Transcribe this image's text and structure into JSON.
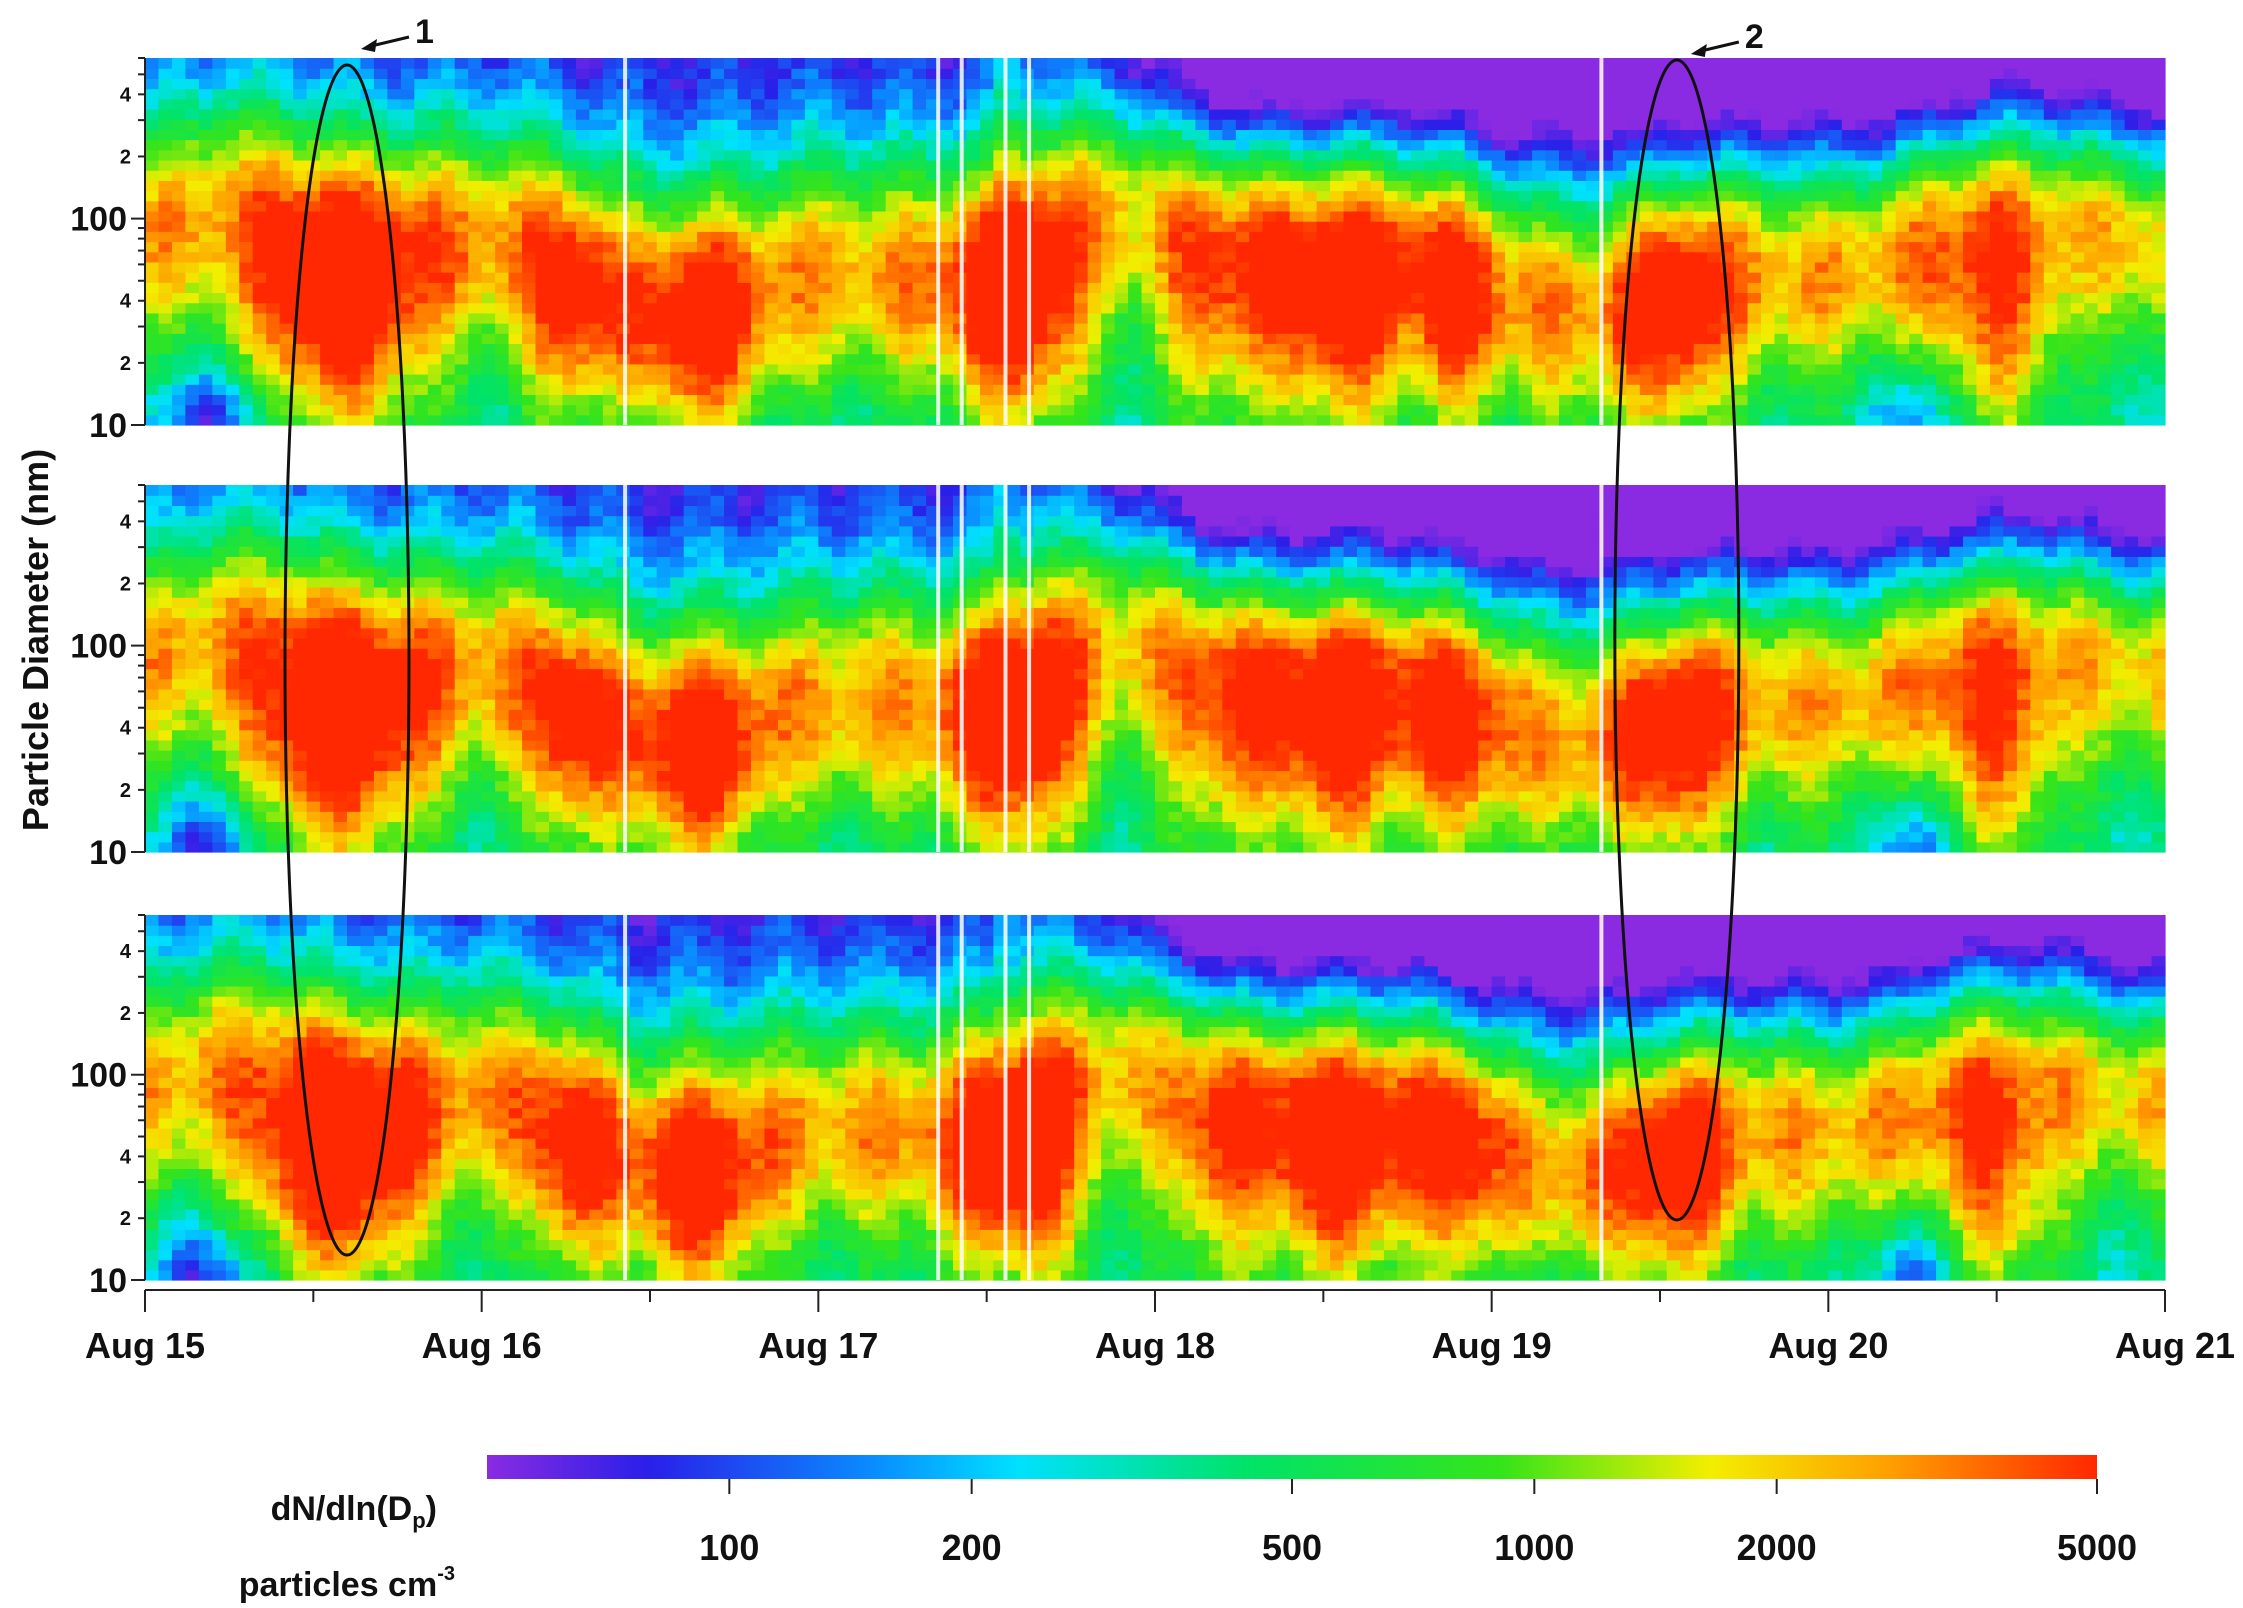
{
  "chart_data": {
    "type": "heatmap",
    "layout": "three stacked panels sharing a time axis",
    "ylabel": "Particle Diameter (nm)",
    "yscale": "log",
    "ylim": [
      10,
      600
    ],
    "y_major_ticks": [
      "10",
      "100"
    ],
    "y_minor_tick_labels": [
      "2",
      "4"
    ],
    "x_tick_labels": [
      "Aug 15",
      "Aug 16",
      "Aug 17",
      "Aug 18",
      "Aug 19",
      "Aug 20",
      "Aug 21"
    ],
    "xlim": [
      "Aug 15",
      "Aug 21"
    ],
    "colorbar": {
      "label_line1": "dN/dln(D",
      "label_sub": "p",
      "label_close": ")",
      "label_line2": "particles cm",
      "label_sup": "-3",
      "ticks": [
        "100",
        "200",
        "500",
        "1000",
        "2000",
        "5000"
      ],
      "scale": "log",
      "range": [
        50,
        5000
      ],
      "colormap": [
        "#8a2be2",
        "#1e2bff",
        "#00d7ff",
        "#19e419",
        "#ffee00",
        "#ff8c00",
        "#ff2a00"
      ]
    },
    "annotations": [
      {
        "label": "1",
        "time": "Aug 15.6",
        "shape": "ellipse"
      },
      {
        "label": "2",
        "time": "Aug 19.55",
        "shape": "ellipse"
      }
    ],
    "panels": [
      {
        "name": "top"
      },
      {
        "name": "middle"
      },
      {
        "name": "bottom"
      }
    ]
  }
}
